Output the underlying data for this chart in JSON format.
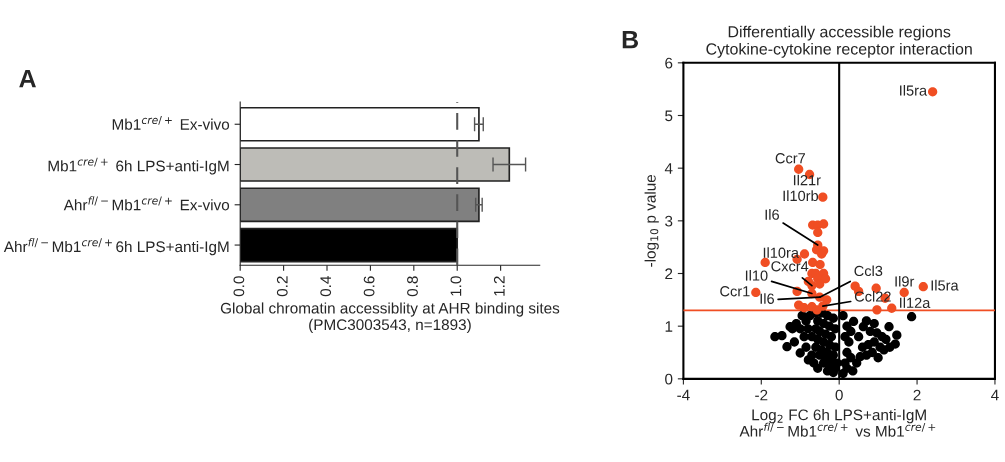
{
  "chart_data": [
    {
      "type": "bar",
      "orientation": "horizontal",
      "categories": [
        "Mb1$^{cre/+}$ Ex-vivo",
        "Mb1$^{cre/+}$ 6h LPS+anti-IgM",
        "Ahr$^{fl/−}$Mb1$^{cre/+}$ Ex-vivo",
        "Ahr$^{fl/−}$Mb1$^{cre/+}$6h LPS+anti-IgM"
      ],
      "values": [
        1.1,
        1.24,
        1.1,
        1.0
      ],
      "errors": [
        0.02,
        0.075,
        0.015,
        null
      ],
      "colors": [
        "#ffffff",
        "#bdbcb7",
        "#808080",
        "#000000"
      ],
      "xlabel": "Global chromatin accessiblity at AHR binding sites\n(PMC3003543, n=1893)",
      "xlim": [
        0,
        1.38
      ],
      "xticks": [
        {
          "value": 0,
          "label": "0.0"
        },
        0.2,
        0.4,
        0.6,
        0.8,
        {
          "value": 1,
          "label": "1.0"
        },
        1.2
      ],
      "ref_lines": [
        {
          "axis": "x",
          "value": 1.0,
          "color": "#555555",
          "line_style": "dashed"
        }
      ],
      "annotations": [
        "A"
      ],
      "grid": false
    },
    {
      "type": "scatter",
      "title": "Differentially accessible regions\nCytokine-cytokine receptor interaction",
      "xlabel": "Log$_{2}$ FC 6h LPS+anti-IgM\nAhr$^{fl/−}$Mb1$^{cre/+}$ vs Mb1$^{cre/+}$",
      "ylabel": "-log$_{10}$ p value",
      "xlim": [
        -4,
        4
      ],
      "xticks": [
        -4,
        -2,
        0,
        2,
        4
      ],
      "ylim": [
        0,
        6
      ],
      "yticks": [
        0,
        1,
        2,
        3,
        4,
        5,
        6
      ],
      "series": [
        {
          "color": "#000000",
          "x": [
            -0.6,
            -0.45,
            -0.3,
            -0.15,
            -0.55,
            -0.4,
            -0.25,
            -0.1,
            -0.6,
            -0.5,
            -0.35,
            -0.2,
            -0.7,
            -0.55,
            -0.4,
            -0.25,
            -0.1,
            -0.6,
            -0.45,
            -0.3,
            -0.15,
            -0.5,
            -0.35,
            -0.2,
            -0.05,
            -0.4,
            -0.25,
            -0.1,
            -0.3,
            -0.15,
            0.1,
            -1.47,
            -1.26,
            -1.2,
            -1.34,
            -1.15,
            -1.0,
            -0.79,
            -0.9,
            -1.0,
            -0.85,
            -0.75,
            -0.85,
            -0.7,
            -0.65,
            -0.55,
            -1.1,
            -0.95,
            -0.8,
            -1.65,
            0.15,
            0.2,
            0.25,
            0.3,
            0.37,
            0.15,
            0.2,
            0.1,
            0.3,
            0.2,
            0.62,
            0.5,
            0.6,
            0.54,
            0.45,
            0.35,
            0.8,
            0.75,
            0.7,
            0.97,
            0.9,
            0.85,
            1.1,
            1.05,
            1.0,
            1.28,
            1.2,
            1.15,
            1.48,
            1.44,
            1.3,
            1.86,
            0.7,
            0.9
          ],
          "values": [
            1.25,
            1.25,
            1.2,
            1.15,
            1.1,
            1.05,
            1.0,
            0.95,
            0.95,
            0.9,
            0.85,
            0.8,
            0.8,
            0.75,
            0.7,
            0.65,
            0.6,
            0.6,
            0.55,
            0.5,
            0.45,
            0.45,
            0.4,
            0.35,
            0.3,
            0.3,
            0.25,
            0.2,
            0.15,
            0.12,
            0.1,
            0.82,
            0.99,
            0.95,
            0.61,
            0.7,
            0.49,
            0.36,
            0.8,
            0.95,
            1.1,
            1.2,
            0.6,
            0.45,
            0.3,
            0.2,
            1.05,
            1.2,
            0.95,
            0.8,
            0.3,
            0.5,
            0.7,
            0.9,
            1.09,
            0.8,
            1.0,
            1.2,
            0.4,
            0.2,
            0.99,
            0.8,
            0.6,
            0.42,
            0.3,
            0.15,
            0.9,
            0.65,
            0.45,
            0.87,
            0.7,
            0.5,
            0.8,
            0.6,
            0.4,
            0.99,
            0.75,
            0.55,
            0.83,
            0.66,
            0.6,
            1.18,
            1.1,
            1.05
          ]
        },
        {
          "color": "#f04e23",
          "x": [
            2.4,
            -1.04,
            -0.76,
            -0.42,
            -0.68,
            -0.55,
            -0.4,
            -0.55,
            -0.55,
            -0.4,
            -0.58,
            -0.89,
            -0.45,
            -1.08,
            -0.68,
            -0.49,
            -1.9,
            -0.7,
            -0.6,
            -0.4,
            -0.55,
            -0.35,
            -0.79,
            -0.7,
            -0.5,
            -1.08,
            -2.14,
            -0.7,
            -0.5,
            -0.32,
            -1.04,
            -0.9,
            -0.7,
            -0.57,
            -0.42,
            0.41,
            0.5,
            0.95,
            1.18,
            0.97,
            1.35,
            1.67,
            2.16
          ],
          "values": [
            5.45,
            3.98,
            3.88,
            3.45,
            2.92,
            2.92,
            2.94,
            2.78,
            2.54,
            2.43,
            2.45,
            2.37,
            2.37,
            2.27,
            2.21,
            2.17,
            2.21,
            2.0,
            2.0,
            2.0,
            1.9,
            1.9,
            1.85,
            1.77,
            1.8,
            1.66,
            1.64,
            1.62,
            1.55,
            1.5,
            1.4,
            1.35,
            1.37,
            1.31,
            1.38,
            1.76,
            1.66,
            1.72,
            1.53,
            1.31,
            1.34,
            1.64,
            1.75
          ]
        }
      ],
      "ref_lines": [
        {
          "axis": "y",
          "value": 1.3,
          "color": "#f04e23",
          "line_style": "solid"
        },
        {
          "axis": "x",
          "value": 0,
          "color": "#000000",
          "line_style": "solid"
        }
      ],
      "annotations": [
        "B",
        {
          "text": "Il5ra",
          "x": 2.4,
          "y": 5.45
        },
        {
          "text": "Ccr7",
          "x": -1.04,
          "y": 3.98
        },
        {
          "text": "Il21r",
          "x": -0.76,
          "y": 3.88
        },
        {
          "text": "Il10rb",
          "x": -0.42,
          "y": 3.45
        },
        {
          "text": "Il6",
          "x": -0.55,
          "y": 2.54
        },
        {
          "text": "Il10ra",
          "x": -0.89,
          "y": 2.37
        },
        {
          "text": "Cxcr4",
          "x": -0.7,
          "y": 1.77
        },
        {
          "text": "Il10",
          "x": -0.7,
          "y": 1.62
        },
        {
          "text": "Ccr1",
          "x": -2.14,
          "y": 1.64
        },
        {
          "text": "Il6",
          "x": -0.5,
          "y": 1.55
        },
        {
          "text": "Ccl3",
          "x": -0.5,
          "y": 1.55
        },
        {
          "text": "Ccl22",
          "x": -0.42,
          "y": 1.38
        },
        {
          "text": "Il9r",
          "x": 1.67,
          "y": 1.64
        },
        {
          "text": "Il5ra",
          "x": 2.16,
          "y": 1.75
        },
        {
          "text": "Il12a",
          "x": 1.35,
          "y": 1.34
        }
      ],
      "grid": false
    }
  ]
}
